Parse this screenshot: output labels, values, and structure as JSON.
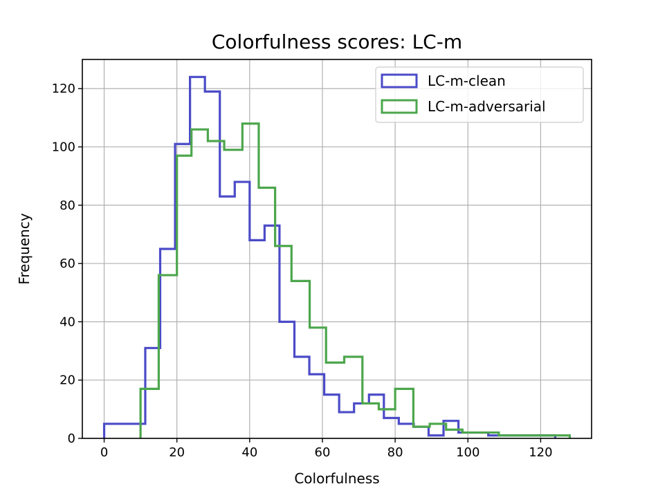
{
  "chart_data": {
    "type": "histogram",
    "title": "Colorfulness scores: LC-m",
    "xlabel": "Colorfulness",
    "ylabel": "Frequency",
    "xlim": [
      -6,
      134
    ],
    "ylim": [
      0,
      130
    ],
    "xticks": [
      0,
      20,
      40,
      60,
      80,
      100,
      120
    ],
    "yticks": [
      0,
      20,
      40,
      60,
      80,
      100,
      120
    ],
    "grid": true,
    "legend_position": "upper right",
    "series": [
      {
        "name": "LC-m-clean",
        "color": "#4b4bc8",
        "edges": [
          0,
          11.3,
          15.4,
          19.5,
          23.6,
          27.7,
          31.8,
          35.9,
          40.0,
          44.1,
          48.2,
          52.3,
          56.4,
          60.5,
          64.6,
          68.7,
          72.8,
          76.9,
          81.0,
          85.1,
          89.2,
          93.3,
          97.4,
          101.5,
          105.6,
          109.7,
          113.8,
          117.9,
          124.0
        ],
        "counts": [
          5,
          31,
          65,
          101,
          124,
          119,
          83,
          88,
          68,
          73,
          40,
          28,
          22,
          15,
          9,
          12,
          15,
          7,
          5,
          4,
          1,
          6,
          2,
          2,
          1,
          1,
          1,
          1
        ]
      },
      {
        "name": "LC-m-adversarial",
        "color": "#4ca64c",
        "edges": [
          10.0,
          15.0,
          20.0,
          24.0,
          28.5,
          33.0,
          38.0,
          42.5,
          47.0,
          51.5,
          56.5,
          61.0,
          66.0,
          71.0,
          75.5,
          80.0,
          85.0,
          89.5,
          94.0,
          98.5,
          103.5,
          108.5,
          113.0,
          117.5,
          122.0,
          128.0
        ],
        "counts": [
          17,
          56,
          97,
          106,
          102,
          99,
          108,
          86,
          66,
          54,
          38,
          26,
          28,
          12,
          10,
          17,
          4,
          5,
          3,
          2,
          2,
          1,
          1,
          1,
          1
        ]
      }
    ]
  }
}
